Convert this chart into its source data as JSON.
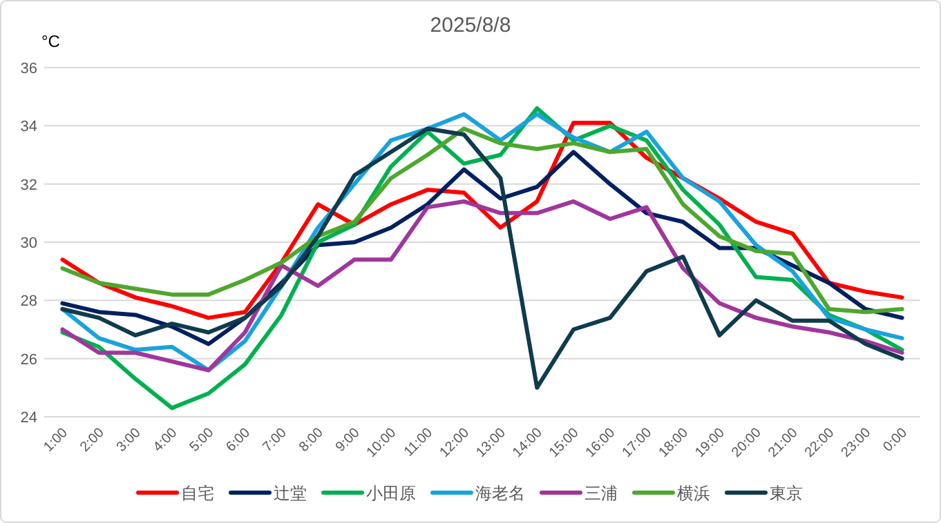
{
  "chart_data": {
    "type": "line",
    "title": "2025/8/8",
    "ylabel": "°C",
    "categories": [
      "1:00",
      "2:00",
      "3:00",
      "4:00",
      "5:00",
      "6:00",
      "7:00",
      "8:00",
      "9:00",
      "10:00",
      "11:00",
      "12:00",
      "13:00",
      "14:00",
      "15:00",
      "16:00",
      "17:00",
      "18:00",
      "19:00",
      "20:00",
      "21:00",
      "22:00",
      "23:00",
      "0:00"
    ],
    "series": [
      {
        "name": "自宅",
        "color": "#ff0000",
        "values": [
          29.4,
          28.6,
          28.1,
          27.8,
          27.4,
          27.6,
          29.3,
          31.3,
          30.6,
          31.3,
          31.8,
          31.7,
          30.5,
          31.4,
          34.1,
          34.1,
          32.9,
          32.2,
          31.5,
          30.7,
          30.3,
          28.6,
          28.3,
          28.1
        ]
      },
      {
        "name": "辻堂",
        "color": "#002060",
        "values": [
          27.9,
          27.6,
          27.5,
          27.1,
          26.5,
          27.4,
          28.6,
          29.9,
          30.0,
          30.5,
          31.3,
          32.5,
          31.5,
          31.9,
          33.1,
          32.0,
          31.0,
          30.7,
          29.8,
          29.8,
          29.2,
          28.6,
          27.7,
          27.4
        ]
      },
      {
        "name": "小田原",
        "color": "#00b050",
        "values": [
          26.9,
          26.4,
          25.3,
          24.3,
          24.8,
          25.8,
          27.5,
          30.0,
          30.6,
          32.6,
          33.8,
          32.7,
          33.0,
          34.6,
          33.5,
          34.0,
          33.5,
          31.8,
          30.6,
          28.8,
          28.7,
          27.5,
          27.0,
          26.3
        ]
      },
      {
        "name": "海老名",
        "color": "#19a3dc",
        "values": [
          27.7,
          26.7,
          26.3,
          26.4,
          25.6,
          26.6,
          28.5,
          30.5,
          32.0,
          33.5,
          33.9,
          34.4,
          33.5,
          34.4,
          33.6,
          33.1,
          33.8,
          32.2,
          31.4,
          29.9,
          29.0,
          27.4,
          27.0,
          26.7
        ]
      },
      {
        "name": "三浦",
        "color": "#a0369c",
        "values": [
          27.0,
          26.2,
          26.2,
          25.9,
          25.6,
          26.9,
          29.2,
          28.5,
          29.4,
          29.4,
          31.2,
          31.4,
          31.0,
          31.0,
          31.4,
          30.8,
          31.2,
          29.1,
          27.9,
          27.4,
          27.1,
          26.9,
          26.6,
          26.2
        ]
      },
      {
        "name": "横浜",
        "color": "#4ea72e",
        "values": [
          29.1,
          28.6,
          28.4,
          28.2,
          28.2,
          28.7,
          29.3,
          30.2,
          30.7,
          32.2,
          33.0,
          33.9,
          33.4,
          33.2,
          33.4,
          33.1,
          33.2,
          31.3,
          30.2,
          29.7,
          29.6,
          27.7,
          27.6,
          27.7
        ]
      },
      {
        "name": "東京",
        "color": "#0f3b4d",
        "values": [
          27.7,
          27.4,
          26.8,
          27.2,
          26.9,
          27.4,
          28.5,
          30.2,
          32.3,
          33.1,
          33.9,
          33.7,
          32.2,
          25.0,
          27.0,
          27.4,
          29.0,
          29.5,
          26.8,
          28.0,
          27.3,
          27.3,
          26.5,
          26.0
        ]
      }
    ],
    "ylim": [
      24,
      36
    ],
    "yticks": [
      24,
      26,
      28,
      30,
      32,
      34,
      36
    ],
    "grid": "y",
    "legend": "bottom",
    "marker": "none",
    "line_style": "solid"
  }
}
